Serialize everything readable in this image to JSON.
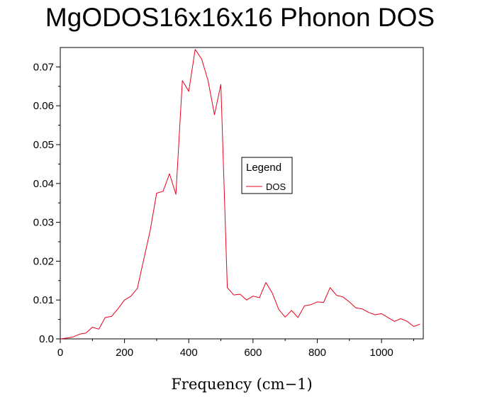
{
  "chart_data": {
    "type": "line",
    "title": "MgODOS16x16x16 Phonon DOS",
    "xlabel": "Frequency (cm−1)",
    "ylabel": "",
    "xlim": [
      0,
      1130
    ],
    "ylim": [
      0,
      0.075
    ],
    "x_ticks": [
      0,
      200,
      400,
      600,
      800,
      1000
    ],
    "y_ticks": [
      0.0,
      0.01,
      0.02,
      0.03,
      0.04,
      0.05,
      0.06,
      0.07
    ],
    "x_tick_labels": [
      "0",
      "200",
      "400",
      "600",
      "800",
      "1000"
    ],
    "y_tick_labels": [
      "0.0",
      "0.01",
      "0.02",
      "0.03",
      "0.04",
      "0.05",
      "0.06",
      "0.07"
    ],
    "grid": false,
    "legend": {
      "title": "Legend",
      "placement": "center-right"
    },
    "series": [
      {
        "name": "DOS",
        "color": "#e8001c",
        "x": [
          0,
          20,
          40,
          60,
          80,
          100,
          120,
          140,
          160,
          180,
          200,
          220,
          240,
          260,
          280,
          300,
          320,
          340,
          360,
          380,
          400,
          420,
          440,
          460,
          480,
          500,
          520,
          540,
          560,
          580,
          600,
          620,
          640,
          660,
          680,
          700,
          720,
          740,
          760,
          780,
          800,
          820,
          840,
          860,
          880,
          900,
          920,
          940,
          960,
          980,
          1000,
          1020,
          1040,
          1060,
          1080,
          1100,
          1120
        ],
        "y": [
          0.0,
          0.0002,
          0.0005,
          0.0012,
          0.0015,
          0.003,
          0.0025,
          0.0055,
          0.0058,
          0.0078,
          0.01,
          0.011,
          0.013,
          0.0205,
          0.028,
          0.0375,
          0.038,
          0.0425,
          0.0372,
          0.0665,
          0.0637,
          0.0745,
          0.072,
          0.0665,
          0.0577,
          0.0655,
          0.0132,
          0.0113,
          0.0115,
          0.01,
          0.011,
          0.0106,
          0.0145,
          0.0118,
          0.0076,
          0.0056,
          0.0073,
          0.0055,
          0.0085,
          0.0088,
          0.0095,
          0.0094,
          0.0132,
          0.0112,
          0.0108,
          0.0095,
          0.008,
          0.0077,
          0.0068,
          0.0062,
          0.0065,
          0.0055,
          0.0045,
          0.0052,
          0.0045,
          0.0032,
          0.0038
        ]
      }
    ]
  }
}
